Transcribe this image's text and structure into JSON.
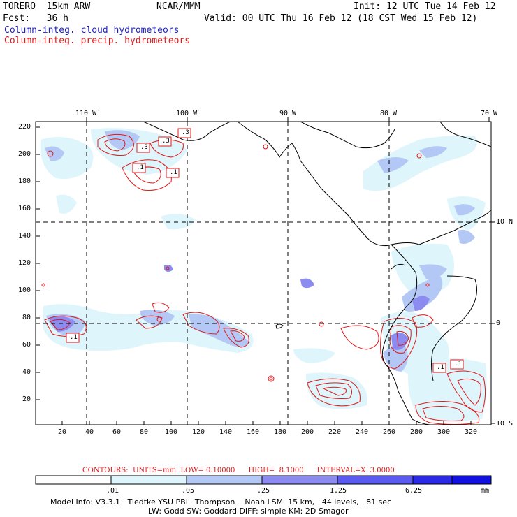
{
  "header": {
    "model": "TORERO  15km ARW",
    "org": "NCAR/MMM",
    "init": "Init: 12 UTC Tue 14 Feb 12",
    "fcst": "Fcst:   36 h",
    "valid": "Valid: 00 UTC Thu 16 Feb 12 (18 CST Wed 15 Feb 12)",
    "field1": "Column-integ. cloud hydrometeors",
    "field2": "Column-integ. precip. hydrometeors"
  },
  "axes": {
    "top_lon": [
      "110 W",
      "100 W",
      "90 W",
      "80 W",
      "70 W"
    ],
    "right_lat": [
      "10 N",
      "0",
      "10 S"
    ],
    "y_ticks": [
      "220",
      "200",
      "180",
      "160",
      "140",
      "120",
      "100",
      "80",
      "60",
      "40",
      "20"
    ],
    "x_ticks": [
      "20",
      "40",
      "60",
      "80",
      "100",
      "120",
      "140",
      "160",
      "180",
      "200",
      "220",
      "240",
      "260",
      "280",
      "300",
      "320"
    ]
  },
  "contour_labels": [
    ".3",
    ".3",
    ".1",
    ".1",
    ".3",
    ".1",
    ".1",
    ".1"
  ],
  "contours": {
    "units_text": "CONTOURS:  UNITS=mm  LOW= 0.10000      HIGH=  8.1000      INTERVAL=X  3.0000"
  },
  "colorbar": {
    "labels": [
      ".01",
      ".05",
      ".25",
      "1.25",
      "6.25",
      "mm"
    ],
    "colors": [
      "#ffffff",
      "#ddf5fb",
      "#b4c8f5",
      "#8c8cf0",
      "#5a5af0",
      "#2a2ae6",
      "#1010e0"
    ]
  },
  "model_info": {
    "line1": "Model Info: V3.3.1   Tiedtke YSU PBL  Thompson    Noah LSM  15 km,   44 levels,   81 sec",
    "line2": "LW: Godd SW: Goddard DIFF: simple KM: 2D Smagor"
  },
  "colors": {
    "cloud_label": "#2020c8",
    "precip_label": "#e01818"
  }
}
